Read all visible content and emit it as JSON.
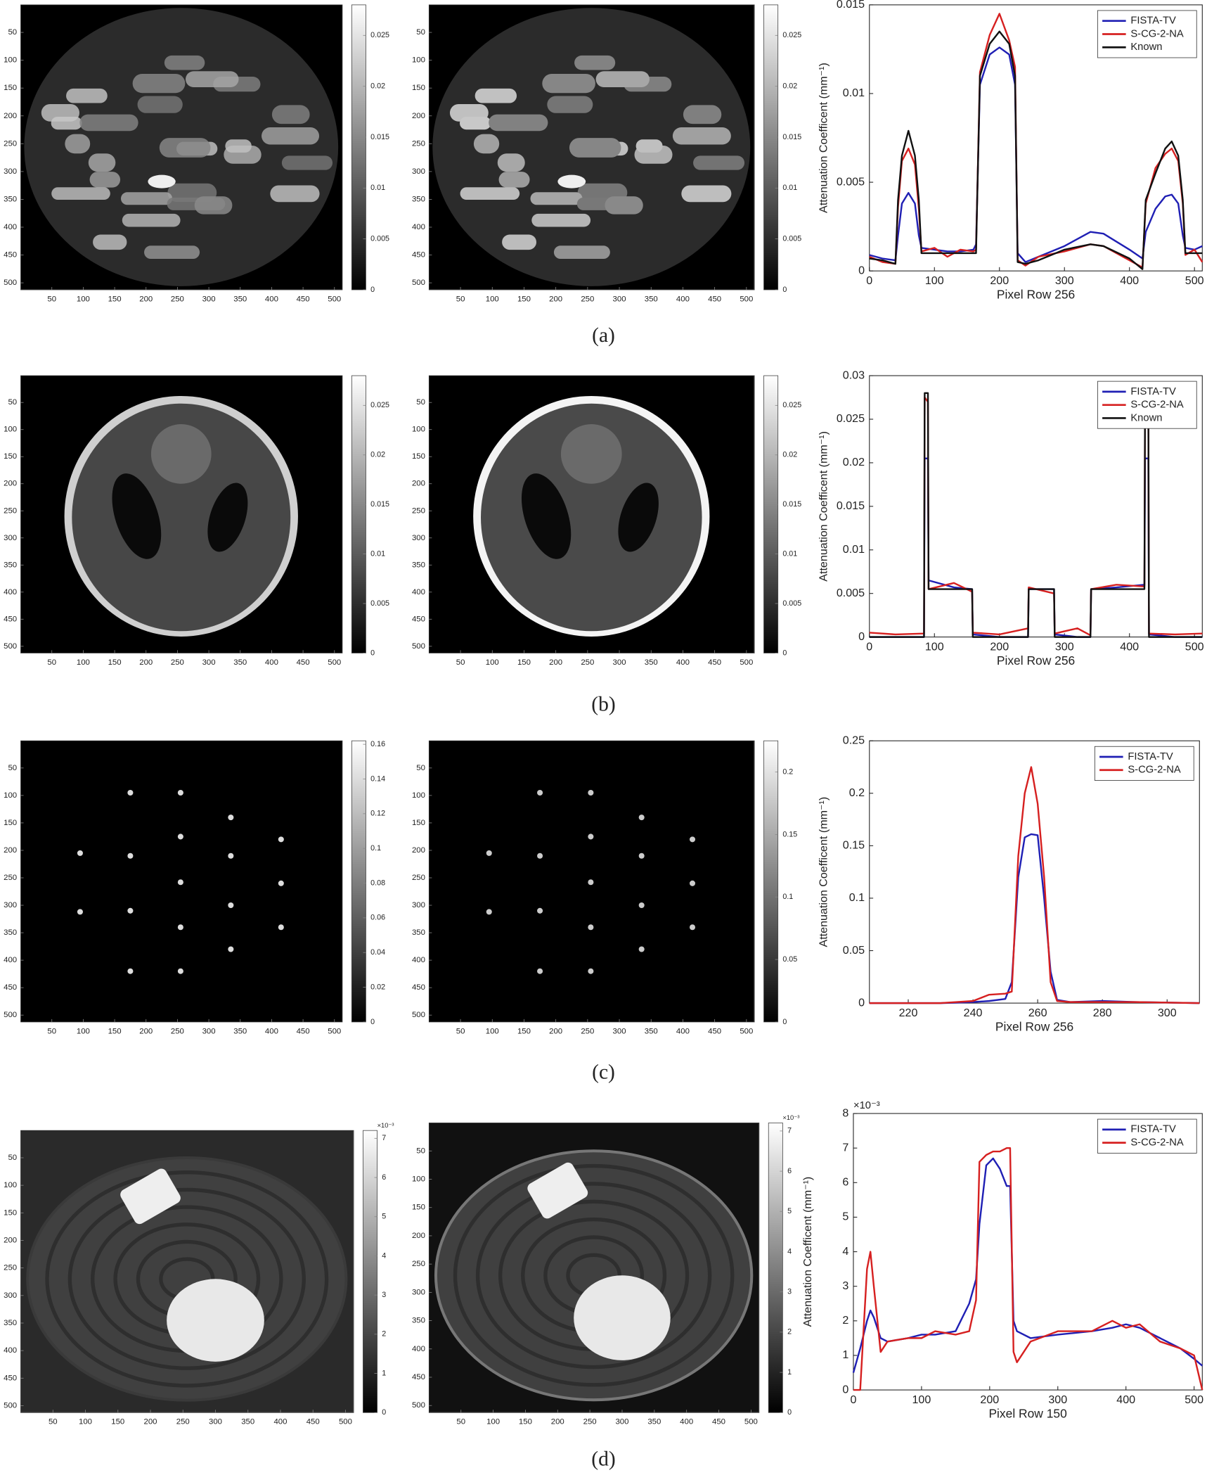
{
  "captions": [
    "(a)",
    "(b)",
    "(c)",
    "(d)"
  ],
  "chart_data": [
    {
      "type": "image",
      "xlim": [
        0.5,
        512.5
      ],
      "ylim": [
        512.5,
        0.5
      ],
      "xticks": [
        50,
        100,
        150,
        200,
        250,
        300,
        350,
        400,
        450,
        500
      ],
      "yticks": [
        50,
        100,
        150,
        200,
        250,
        300,
        350,
        400,
        450,
        500
      ],
      "clim": [
        0,
        0.028
      ],
      "cticks": [
        0,
        0.005,
        0.01,
        0.015,
        0.02,
        0.025
      ],
      "colormap": "gray"
    },
    {
      "type": "image",
      "xlim": [
        0.5,
        512.5
      ],
      "ylim": [
        512.5,
        0.5
      ],
      "xticks": [
        50,
        100,
        150,
        200,
        250,
        300,
        350,
        400,
        450,
        500
      ],
      "yticks": [
        50,
        100,
        150,
        200,
        250,
        300,
        350,
        400,
        450,
        500
      ],
      "clim": [
        0,
        0.028
      ],
      "cticks": [
        0,
        0.005,
        0.01,
        0.015,
        0.02,
        0.025
      ],
      "colormap": "gray"
    },
    {
      "type": "line",
      "xlabel": "Pixel Row 256",
      "ylabel": "Attenuation Coefficent (mm⁻¹)",
      "legend": "upper right",
      "x": [
        0,
        20,
        40,
        44,
        50,
        60,
        70,
        76,
        80,
        100,
        120,
        140,
        160,
        164,
        170,
        185,
        200,
        215,
        224,
        228,
        240,
        260,
        300,
        340,
        360,
        400,
        420,
        425,
        440,
        455,
        465,
        475,
        482,
        486,
        500,
        512
      ],
      "series": [
        {
          "name": "FISTA-TV",
          "color": "#1f1fb4",
          "values": [
            0.0009,
            0.0007,
            0.0006,
            0.002,
            0.0038,
            0.0044,
            0.0038,
            0.002,
            0.0013,
            0.0012,
            0.0011,
            0.0011,
            0.0012,
            0.0015,
            0.0105,
            0.0122,
            0.0126,
            0.0122,
            0.0105,
            0.001,
            0.0005,
            0.0008,
            0.0014,
            0.0022,
            0.0021,
            0.0012,
            0.0007,
            0.0022,
            0.0035,
            0.0042,
            0.0043,
            0.0038,
            0.002,
            0.0013,
            0.0012,
            0.0014
          ]
        },
        {
          "name": "S-CG-2-NA",
          "color": "#d62020",
          "values": [
            0.0008,
            0.0005,
            0.0004,
            0.0036,
            0.0062,
            0.0069,
            0.006,
            0.0035,
            0.0011,
            0.0013,
            0.0008,
            0.0012,
            0.0011,
            0.0012,
            0.0112,
            0.0133,
            0.0145,
            0.013,
            0.0115,
            0.0006,
            0.0003,
            0.0008,
            0.0011,
            0.0015,
            0.0014,
            0.0006,
            0.0002,
            0.0038,
            0.0058,
            0.0066,
            0.0069,
            0.0062,
            0.0038,
            0.0009,
            0.0012,
            0.0005
          ]
        },
        {
          "name": "Known",
          "color": "#111111",
          "values": [
            0.0007,
            0.0006,
            0.0004,
            0.004,
            0.0065,
            0.0079,
            0.0065,
            0.004,
            0.001,
            0.001,
            0.001,
            0.001,
            0.001,
            0.001,
            0.011,
            0.0128,
            0.0135,
            0.0128,
            0.011,
            0.0005,
            0.0004,
            0.0006,
            0.0012,
            0.0015,
            0.0014,
            0.0007,
            0.0001,
            0.004,
            0.0055,
            0.0069,
            0.0073,
            0.0065,
            0.004,
            0.001,
            0.001,
            0.001
          ]
        }
      ],
      "xlim": [
        0,
        512
      ],
      "ylim": [
        0,
        0.015
      ],
      "xticks": [
        0,
        100,
        200,
        300,
        400,
        500
      ],
      "yticks": [
        0,
        0.005,
        0.01,
        0.015
      ]
    },
    {
      "type": "image",
      "xlim": [
        0.5,
        512.5
      ],
      "ylim": [
        512.5,
        0.5
      ],
      "xticks": [
        50,
        100,
        150,
        200,
        250,
        300,
        350,
        400,
        450,
        500
      ],
      "yticks": [
        50,
        100,
        150,
        200,
        250,
        300,
        350,
        400,
        450,
        500
      ],
      "clim": [
        0,
        0.028
      ],
      "cticks": [
        0,
        0.005,
        0.01,
        0.015,
        0.02,
        0.025
      ],
      "colormap": "gray"
    },
    {
      "type": "image",
      "xlim": [
        0.5,
        512.5
      ],
      "ylim": [
        512.5,
        0.5
      ],
      "xticks": [
        50,
        100,
        150,
        200,
        250,
        300,
        350,
        400,
        450,
        500
      ],
      "yticks": [
        50,
        100,
        150,
        200,
        250,
        300,
        350,
        400,
        450,
        500
      ],
      "clim": [
        0,
        0.028
      ],
      "cticks": [
        0,
        0.005,
        0.01,
        0.015,
        0.02,
        0.025
      ],
      "colormap": "gray"
    },
    {
      "type": "line",
      "xlabel": "Pixel Row 256",
      "ylabel": "Attenuation Coefficent (mm⁻¹)",
      "legend": "upper right",
      "x": [
        0,
        40,
        84,
        85,
        90,
        91,
        130,
        158,
        159,
        200,
        244,
        245,
        284,
        285,
        320,
        340,
        341,
        380,
        423,
        424,
        429,
        430,
        470,
        512
      ],
      "series": [
        {
          "name": "FISTA-TV",
          "color": "#1f1fb4",
          "values": [
            0,
            0,
            0,
            0.0205,
            0.0205,
            0.0065,
            0.0057,
            0.0055,
            0.0003,
            0,
            0,
            0.0055,
            0.0055,
            0.0003,
            0,
            0,
            0.0055,
            0.0057,
            0.006,
            0.0205,
            0.0205,
            0.0003,
            0,
            0
          ]
        },
        {
          "name": "S-CG-2-NA",
          "color": "#d62020",
          "values": [
            0.0005,
            0.0003,
            0.0004,
            0.0275,
            0.027,
            0.0055,
            0.0062,
            0.0052,
            0.0005,
            0.0003,
            0.001,
            0.0057,
            0.005,
            0.0004,
            0.001,
            0.0002,
            0.0055,
            0.006,
            0.0058,
            0.0285,
            0.027,
            0.0004,
            0.0003,
            0.0004
          ]
        },
        {
          "name": "Known",
          "color": "#111111",
          "values": [
            0,
            0,
            0,
            0.028,
            0.028,
            0.0055,
            0.0055,
            0.0055,
            0,
            0,
            0,
            0.0055,
            0.0055,
            0,
            0,
            0,
            0.0055,
            0.0055,
            0.0055,
            0.028,
            0.028,
            0,
            0,
            0
          ]
        }
      ],
      "xlim": [
        0,
        512
      ],
      "ylim": [
        0,
        0.03
      ],
      "xticks": [
        0,
        100,
        200,
        300,
        400,
        500
      ],
      "yticks": [
        0,
        0.005,
        0.01,
        0.015,
        0.02,
        0.025,
        0.03
      ]
    },
    {
      "type": "image",
      "xlim": [
        0.5,
        512.5
      ],
      "ylim": [
        512.5,
        0.5
      ],
      "xticks": [
        50,
        100,
        150,
        200,
        250,
        300,
        350,
        400,
        450,
        500
      ],
      "yticks": [
        50,
        100,
        150,
        200,
        250,
        300,
        350,
        400,
        450,
        500
      ],
      "clim": [
        0,
        0.162
      ],
      "cticks": [
        0,
        0.02,
        0.04,
        0.06,
        0.08,
        0.1,
        0.12,
        0.14,
        0.16
      ],
      "colormap": "gray"
    },
    {
      "type": "image",
      "xlim": [
        0.5,
        512.5
      ],
      "ylim": [
        512.5,
        0.5
      ],
      "xticks": [
        50,
        100,
        150,
        200,
        250,
        300,
        350,
        400,
        450,
        500
      ],
      "yticks": [
        50,
        100,
        150,
        200,
        250,
        300,
        350,
        400,
        450,
        500
      ],
      "clim": [
        0,
        0.225
      ],
      "cticks": [
        0,
        0.05,
        0.1,
        0.15,
        0.2
      ],
      "colormap": "gray"
    },
    {
      "type": "line",
      "xlabel": "Pixel Row 256",
      "ylabel": "Attenuation Coefficent (mm⁻¹)",
      "legend": "upper right",
      "x": [
        208,
        230,
        240,
        245,
        250,
        252,
        254,
        256,
        258,
        260,
        262,
        264,
        266,
        270,
        280,
        290,
        310
      ],
      "series": [
        {
          "name": "FISTA-TV",
          "color": "#1f1fb4",
          "values": [
            0,
            0,
            0.001,
            0.002,
            0.004,
            0.02,
            0.12,
            0.158,
            0.161,
            0.16,
            0.1,
            0.03,
            0.003,
            0.001,
            0.002,
            0.001,
            0
          ]
        },
        {
          "name": "S-CG-2-NA",
          "color": "#d62020",
          "values": [
            0,
            0,
            0.002,
            0.008,
            0.009,
            0.011,
            0.14,
            0.2,
            0.225,
            0.19,
            0.12,
            0.02,
            0.002,
            0.001,
            0.001,
            0.001,
            0
          ]
        }
      ],
      "xlim": [
        208,
        310
      ],
      "ylim": [
        0,
        0.25
      ],
      "xticks": [
        220,
        240,
        260,
        280,
        300
      ],
      "yticks": [
        0,
        0.05,
        0.1,
        0.15,
        0.2,
        0.25
      ]
    },
    {
      "type": "image",
      "xlim": [
        0.5,
        512.5
      ],
      "ylim": [
        512.5,
        0.5
      ],
      "xticks": [
        50,
        100,
        150,
        200,
        250,
        300,
        350,
        400,
        450,
        500
      ],
      "yticks": [
        50,
        100,
        150,
        200,
        250,
        300,
        350,
        400,
        450,
        500
      ],
      "clim": [
        0,
        7.2
      ],
      "cticks": [
        0,
        1,
        2,
        3,
        4,
        5,
        6,
        7
      ],
      "cscale": "×10⁻³",
      "colormap": "gray"
    },
    {
      "type": "image",
      "xlim": [
        0.5,
        512.5
      ],
      "ylim": [
        512.5,
        0.5
      ],
      "xticks": [
        50,
        100,
        150,
        200,
        250,
        300,
        350,
        400,
        450,
        500
      ],
      "yticks": [
        50,
        100,
        150,
        200,
        250,
        300,
        350,
        400,
        450,
        500
      ],
      "clim": [
        0,
        7.2
      ],
      "cticks": [
        0,
        1,
        2,
        3,
        4,
        5,
        6,
        7
      ],
      "cscale": "×10⁻³",
      "colormap": "gray"
    },
    {
      "type": "line",
      "xlabel": "Pixel Row 150",
      "ylabel": "Attenuation Coefficent (mm⁻¹)",
      "legend": "upper right",
      "yscale": "×10⁻³",
      "x": [
        0,
        10,
        20,
        25,
        30,
        40,
        50,
        80,
        100,
        120,
        150,
        170,
        180,
        185,
        195,
        205,
        215,
        225,
        230,
        235,
        240,
        260,
        300,
        350,
        380,
        400,
        420,
        450,
        480,
        500,
        512
      ],
      "series": [
        {
          "name": "FISTA-TV",
          "color": "#1f1fb4",
          "values": [
            0.5,
            1.2,
            2.0,
            2.3,
            2.1,
            1.5,
            1.4,
            1.5,
            1.6,
            1.6,
            1.7,
            2.5,
            3.2,
            4.8,
            6.5,
            6.7,
            6.4,
            5.9,
            5.9,
            2.0,
            1.7,
            1.5,
            1.6,
            1.7,
            1.8,
            1.9,
            1.8,
            1.5,
            1.2,
            0.9,
            0.7
          ]
        },
        {
          "name": "S-CG-2-NA",
          "color": "#d62020",
          "values": [
            0,
            0,
            3.5,
            4.0,
            3.0,
            1.1,
            1.4,
            1.5,
            1.5,
            1.7,
            1.6,
            1.7,
            2.6,
            6.6,
            6.8,
            6.9,
            6.9,
            7.0,
            7.0,
            1.1,
            0.8,
            1.4,
            1.7,
            1.7,
            2.0,
            1.8,
            1.9,
            1.4,
            1.2,
            1.0,
            0
          ]
        }
      ],
      "xlim": [
        0,
        512
      ],
      "ylim": [
        0,
        8
      ],
      "xticks": [
        0,
        100,
        200,
        300,
        400,
        500
      ],
      "yticks": [
        0,
        1,
        2,
        3,
        4,
        5,
        6,
        7,
        8
      ]
    }
  ]
}
